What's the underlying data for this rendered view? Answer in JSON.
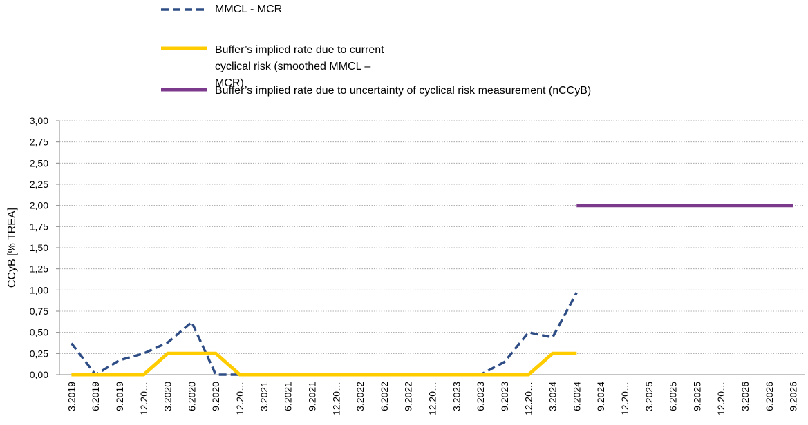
{
  "chart_data": {
    "type": "line",
    "y_label": "CCyB [% TREA]",
    "categories": [
      "3.2019",
      "6.2019",
      "9.2019",
      "12.20…",
      "3.2020",
      "6.2020",
      "9.2020",
      "12.20…",
      "3.2021",
      "6.2021",
      "9.2021",
      "12.20…",
      "3.2022",
      "6.2022",
      "9.2022",
      "12.20…",
      "3.2023",
      "6.2023",
      "9.2023",
      "12.20…",
      "3.2024",
      "6.2024",
      "9.2024",
      "12.20…",
      "3.2025",
      "6.2025",
      "9.2025",
      "12.20…",
      "3.2026",
      "6.2026",
      "9.2026"
    ],
    "series": [
      {
        "name": "MMCL - MCR",
        "color": "#2e4d85",
        "dash": true,
        "values": [
          0.37,
          0,
          0.17,
          0.25,
          0.38,
          0.62,
          0,
          0,
          0,
          0,
          0,
          0,
          0,
          0,
          0,
          0,
          0,
          0,
          0.15,
          0.5,
          0.44,
          0.97,
          null,
          null,
          null,
          null,
          null,
          null,
          null,
          null,
          null
        ]
      },
      {
        "name": "Buffer’s implied rate due to current cyclical risk (smoothed MMCL – MCR)",
        "color": "#ffcc00",
        "dash": false,
        "values": [
          0,
          0,
          0,
          0,
          0.25,
          0.25,
          0.25,
          0,
          0,
          0,
          0,
          0,
          0,
          0,
          0,
          0,
          0,
          0,
          0,
          0,
          0.25,
          0.25,
          null,
          null,
          null,
          null,
          null,
          null,
          null,
          null,
          null
        ]
      },
      {
        "name": "Buffer’s implied rate due to uncertainty of cyclical risk measurement (nCCyB)",
        "color": "#7b3a8c",
        "dash": false,
        "values": [
          null,
          null,
          null,
          null,
          null,
          null,
          null,
          null,
          null,
          null,
          null,
          null,
          null,
          null,
          null,
          null,
          null,
          null,
          null,
          null,
          null,
          2,
          2,
          2,
          2,
          2,
          2,
          2,
          2,
          2,
          2
        ]
      }
    ],
    "ylim": [
      0,
      3
    ],
    "yticks": [
      {
        "value": 0,
        "label": "0,00"
      },
      {
        "value": 0.25,
        "label": "0,25"
      },
      {
        "value": 0.5,
        "label": "0,50"
      },
      {
        "value": 0.75,
        "label": "0,75"
      },
      {
        "value": 1,
        "label": "1,00"
      },
      {
        "value": 1.25,
        "label": "1,25"
      },
      {
        "value": 1.5,
        "label": "1,50"
      },
      {
        "value": 1.75,
        "label": "1,75"
      },
      {
        "value": 2,
        "label": "2,00"
      },
      {
        "value": 2.25,
        "label": "2,25"
      },
      {
        "value": 2.5,
        "label": "2,50"
      },
      {
        "value": 2.75,
        "label": "2,75"
      },
      {
        "value": 3,
        "label": "3,00"
      }
    ],
    "grid": true
  }
}
